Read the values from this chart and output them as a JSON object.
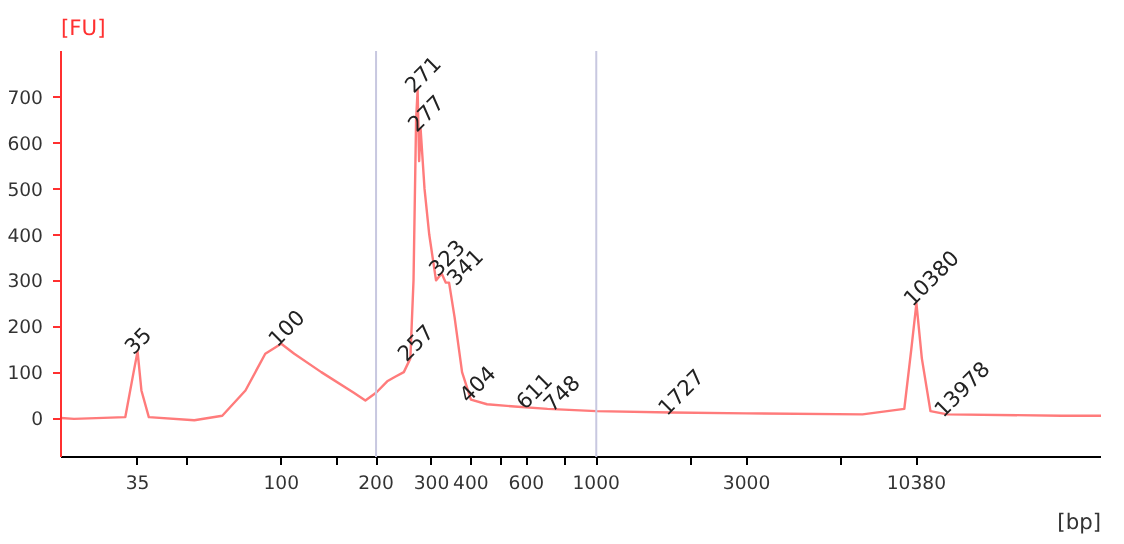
{
  "chart_data": {
    "type": "line",
    "xlabel": "[bp]",
    "ylabel": "[FU]",
    "x": [
      20,
      22,
      32,
      34,
      35,
      36,
      38,
      53,
      65,
      77,
      89,
      100,
      110,
      134,
      170,
      185,
      200,
      217,
      230,
      245,
      257,
      263,
      268,
      271,
      274,
      277,
      285,
      295,
      310,
      323,
      333,
      341,
      355,
      375,
      400,
      450,
      550,
      700,
      1000,
      1727,
      3000,
      7000,
      9500,
      10000,
      10380,
      10800,
      11500,
      13000,
      30000,
      40000
    ],
    "series": [
      {
        "color": "#ff7b7b",
        "values": [
          0,
          -2,
          2,
          100,
          145,
          60,
          2,
          -5,
          5,
          60,
          140,
          162,
          140,
          100,
          55,
          38,
          55,
          80,
          90,
          100,
          130,
          300,
          650,
          715,
          560,
          630,
          500,
          400,
          300,
          315,
          295,
          295,
          220,
          100,
          40,
          30,
          25,
          20,
          15,
          12,
          10,
          8,
          20,
          150,
          250,
          130,
          15,
          8,
          5,
          5
        ]
      }
    ],
    "log": "x",
    "xlim": [
      20,
      40000
    ],
    "xticks": [
      35,
      {
        "value": 50,
        "label": null
      },
      100,
      {
        "value": 150,
        "label": null
      },
      200,
      300,
      400,
      {
        "value": 500,
        "label": null
      },
      600,
      {
        "value": 800,
        "label": null
      },
      1000,
      {
        "value": 2000,
        "label": null
      },
      3000,
      {
        "value": 6000,
        "label": null
      },
      10380
    ],
    "ylim": [
      -85,
      800
    ],
    "yticks": [
      0,
      100,
      200,
      300,
      400,
      500,
      600,
      700
    ],
    "grid": false,
    "ref_lines": [
      {
        "axis": "x",
        "value": 200,
        "color": "#c8c8e0"
      },
      {
        "axis": "x",
        "value": 1000,
        "color": "#c8c8e0"
      }
    ],
    "annotations": [
      {
        "text": "35",
        "x": 35,
        "y": 145
      },
      {
        "text": "100",
        "x": 100,
        "y": 162
      },
      {
        "text": "257",
        "x": 257,
        "y": 130
      },
      {
        "text": "271",
        "x": 271,
        "y": 715
      },
      {
        "text": "277",
        "x": 277,
        "y": 630
      },
      {
        "text": "323",
        "x": 323,
        "y": 315
      },
      {
        "text": "341",
        "x": 341,
        "y": 295
      },
      {
        "text": "404",
        "x": 404,
        "y": 40
      },
      {
        "text": "611",
        "x": 611,
        "y": 25
      },
      {
        "text": "748",
        "x": 748,
        "y": 20
      },
      {
        "text": "1727",
        "x": 1727,
        "y": 12
      },
      {
        "text": "10380",
        "x": 10380,
        "y": 250
      },
      {
        "text": "13978",
        "x": 13000,
        "y": 8
      }
    ]
  }
}
